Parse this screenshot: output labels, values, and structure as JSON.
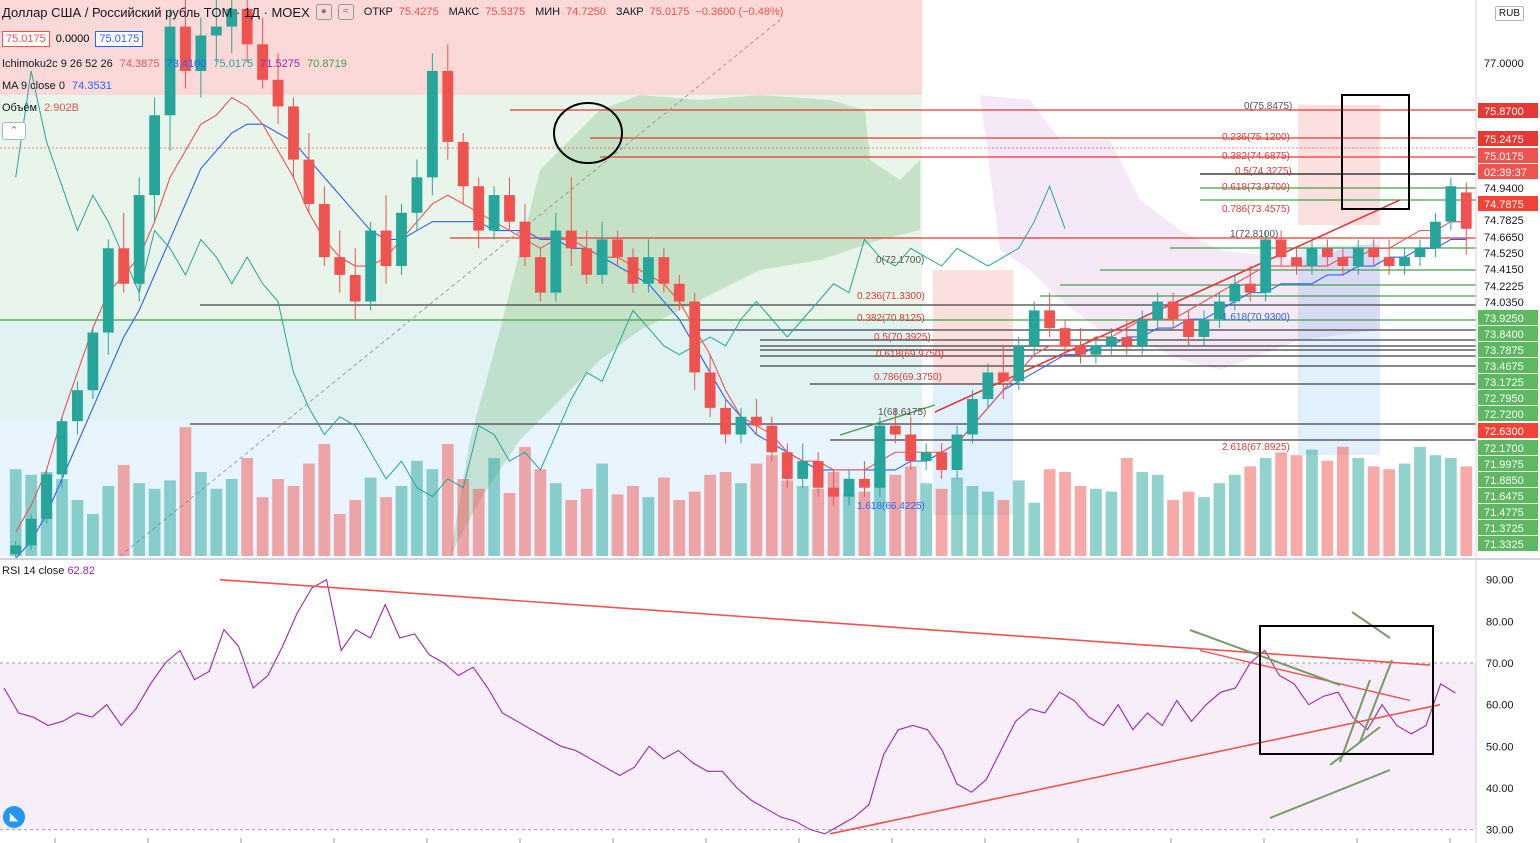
{
  "header": {
    "symbol": "Доллар США / Российский рубль TOM · 1Д · MOEX",
    "open_label": "ОТКР",
    "open": "75.4275",
    "high_label": "МАКС",
    "high": "75.5375",
    "low_label": "МИН",
    "low": "74.7250",
    "close_label": "ЗАКР",
    "close": "75.0175",
    "change": "−0.3600 (−0.48%)",
    "bid": "75.0175",
    "spread": "0.0000",
    "ask": "75.0175",
    "currency": "RUB"
  },
  "indicators": {
    "ichimoku_name": "Ichimoku2c 9 26 52 26",
    "ichimoku_values": [
      "74.3875",
      "73.4100",
      "75.0175",
      "71.5275",
      "70.8719"
    ],
    "ichimoku_colors": [
      "#ef5350",
      "#2962ff",
      "#26a69a",
      "#9c27b0",
      "#43a047"
    ],
    "ma_name": "MA 9 close 0",
    "ma_value": "74.3531",
    "volume_name": "Объём",
    "volume_value": "2.902B",
    "rsi_name": "RSI 14 close",
    "rsi_value": "62.82"
  },
  "chart_data": [
    {
      "type": "candlestick",
      "price_axis_labels": [
        "77.0000",
        "75.8700",
        "75.2475",
        "75.0175",
        "02:39:37",
        "74.9400",
        "74.7875",
        "74.7825",
        "74.6650",
        "74.5250",
        "74.4150",
        "74.2225",
        "74.0350",
        "73.9250",
        "73.8400",
        "73.7875",
        "73.4675",
        "73.1725",
        "72.7950",
        "72.7200",
        "72.6300",
        "72.1700",
        "71.9975",
        "71.8850",
        "71.6475",
        "71.4775",
        "71.3725",
        "71.3325"
      ],
      "highlighted_axis_labels": [
        "75.8700",
        "75.2475",
        "75.0175",
        "02:39:37",
        "74.7875",
        "72.6300"
      ],
      "fib_left": [
        "0(72.1700)",
        "0.236(71.3300)",
        "0.382(70.8125)",
        "0.5(70.3925)",
        "0.618(69.9750)",
        "0.786(69.3750)",
        "1(68.6175)",
        "1.618(66.4225)"
      ],
      "fib_right": [
        "0(75.8475)",
        "0.236(75.1200)",
        "0.382(74.6875)",
        "0.5(74.3275)",
        "0.618(73.9700)",
        "0.786(73.4575)",
        "1(72.8100)",
        "1.618(70.9300)",
        "2.618(67.8925)"
      ],
      "ylim": [
        71.33,
        77.6
      ],
      "candles": [
        {
          "o": 71.35,
          "h": 71.5,
          "l": 71.3,
          "c": 71.45
        },
        {
          "o": 71.45,
          "h": 71.8,
          "l": 71.4,
          "c": 71.75
        },
        {
          "o": 71.75,
          "h": 72.3,
          "l": 71.7,
          "c": 72.25
        },
        {
          "o": 72.25,
          "h": 72.9,
          "l": 72.1,
          "c": 72.85
        },
        {
          "o": 72.85,
          "h": 73.3,
          "l": 72.7,
          "c": 73.2
        },
        {
          "o": 73.2,
          "h": 73.9,
          "l": 73.1,
          "c": 73.85
        },
        {
          "o": 73.85,
          "h": 74.9,
          "l": 73.6,
          "c": 74.8
        },
        {
          "o": 74.8,
          "h": 75.2,
          "l": 74.3,
          "c": 74.4
        },
        {
          "o": 74.4,
          "h": 75.6,
          "l": 74.2,
          "c": 75.4
        },
        {
          "o": 75.4,
          "h": 76.5,
          "l": 75.1,
          "c": 76.3
        },
        {
          "o": 76.3,
          "h": 77.5,
          "l": 75.9,
          "c": 77.3
        },
        {
          "o": 77.3,
          "h": 77.6,
          "l": 76.6,
          "c": 76.8
        },
        {
          "o": 76.8,
          "h": 77.4,
          "l": 76.5,
          "c": 77.2
        },
        {
          "o": 77.2,
          "h": 77.6,
          "l": 76.9,
          "c": 77.3
        },
        {
          "o": 77.3,
          "h": 77.6,
          "l": 77.0,
          "c": 77.5
        },
        {
          "o": 77.5,
          "h": 77.6,
          "l": 76.9,
          "c": 77.1
        },
        {
          "o": 77.1,
          "h": 77.4,
          "l": 76.6,
          "c": 76.7
        },
        {
          "o": 76.7,
          "h": 77.0,
          "l": 76.2,
          "c": 76.4
        },
        {
          "o": 76.4,
          "h": 76.5,
          "l": 75.6,
          "c": 75.8
        },
        {
          "o": 75.8,
          "h": 76.1,
          "l": 75.2,
          "c": 75.3
        },
        {
          "o": 75.3,
          "h": 75.5,
          "l": 74.6,
          "c": 74.7
        },
        {
          "o": 74.7,
          "h": 75.0,
          "l": 74.3,
          "c": 74.5
        },
        {
          "o": 74.5,
          "h": 74.8,
          "l": 74.0,
          "c": 74.2
        },
        {
          "o": 74.2,
          "h": 75.1,
          "l": 74.1,
          "c": 75.0
        },
        {
          "o": 75.0,
          "h": 75.4,
          "l": 74.4,
          "c": 74.6
        },
        {
          "o": 74.6,
          "h": 75.3,
          "l": 74.5,
          "c": 75.2
        },
        {
          "o": 75.2,
          "h": 75.8,
          "l": 75.0,
          "c": 75.6
        },
        {
          "o": 75.6,
          "h": 77.0,
          "l": 75.4,
          "c": 76.8
        },
        {
          "o": 76.8,
          "h": 77.1,
          "l": 75.8,
          "c": 76.0
        },
        {
          "o": 76.0,
          "h": 76.1,
          "l": 75.3,
          "c": 75.5
        },
        {
          "o": 75.5,
          "h": 75.6,
          "l": 74.8,
          "c": 75.0
        },
        {
          "o": 75.0,
          "h": 75.5,
          "l": 74.9,
          "c": 75.4
        },
        {
          "o": 75.4,
          "h": 75.6,
          "l": 75.0,
          "c": 75.1
        },
        {
          "o": 75.1,
          "h": 75.3,
          "l": 74.6,
          "c": 74.7
        },
        {
          "o": 74.7,
          "h": 74.8,
          "l": 74.2,
          "c": 74.3
        },
        {
          "o": 74.3,
          "h": 75.2,
          "l": 74.2,
          "c": 75.0
        },
        {
          "o": 75.0,
          "h": 75.6,
          "l": 74.6,
          "c": 74.8
        },
        {
          "o": 74.8,
          "h": 75.0,
          "l": 74.4,
          "c": 74.5
        },
        {
          "o": 74.5,
          "h": 75.1,
          "l": 74.4,
          "c": 74.9
        },
        {
          "o": 74.9,
          "h": 75.0,
          "l": 74.6,
          "c": 74.7
        },
        {
          "o": 74.7,
          "h": 74.8,
          "l": 74.3,
          "c": 74.4
        },
        {
          "o": 74.4,
          "h": 74.9,
          "l": 74.3,
          "c": 74.7
        },
        {
          "o": 74.7,
          "h": 74.8,
          "l": 74.3,
          "c": 74.4
        },
        {
          "o": 74.4,
          "h": 74.5,
          "l": 74.1,
          "c": 74.2
        },
        {
          "o": 74.2,
          "h": 74.3,
          "l": 73.2,
          "c": 73.4
        },
        {
          "o": 73.4,
          "h": 73.6,
          "l": 72.9,
          "c": 73.0
        },
        {
          "o": 73.0,
          "h": 73.1,
          "l": 72.6,
          "c": 72.7
        },
        {
          "o": 72.7,
          "h": 73.0,
          "l": 72.6,
          "c": 72.9
        },
        {
          "o": 72.9,
          "h": 73.1,
          "l": 72.7,
          "c": 72.8
        },
        {
          "o": 72.8,
          "h": 72.9,
          "l": 72.4,
          "c": 72.5
        },
        {
          "o": 72.5,
          "h": 72.6,
          "l": 72.1,
          "c": 72.2
        },
        {
          "o": 72.2,
          "h": 72.6,
          "l": 72.1,
          "c": 72.4
        },
        {
          "o": 72.4,
          "h": 72.5,
          "l": 72.0,
          "c": 72.1
        },
        {
          "o": 72.1,
          "h": 72.3,
          "l": 71.9,
          "c": 72.0
        },
        {
          "o": 72.0,
          "h": 72.3,
          "l": 71.9,
          "c": 72.2
        },
        {
          "o": 72.2,
          "h": 72.4,
          "l": 72.0,
          "c": 72.1
        },
        {
          "o": 72.1,
          "h": 72.9,
          "l": 72.0,
          "c": 72.8
        },
        {
          "o": 72.8,
          "h": 73.0,
          "l": 72.6,
          "c": 72.7
        },
        {
          "o": 72.7,
          "h": 72.9,
          "l": 72.3,
          "c": 72.4
        },
        {
          "o": 72.4,
          "h": 72.6,
          "l": 72.3,
          "c": 72.5
        },
        {
          "o": 72.5,
          "h": 72.6,
          "l": 72.2,
          "c": 72.3
        },
        {
          "o": 72.3,
          "h": 72.8,
          "l": 72.2,
          "c": 72.7
        },
        {
          "o": 72.7,
          "h": 73.2,
          "l": 72.6,
          "c": 73.1
        },
        {
          "o": 73.1,
          "h": 73.5,
          "l": 73.0,
          "c": 73.4
        },
        {
          "o": 73.4,
          "h": 73.7,
          "l": 73.1,
          "c": 73.3
        },
        {
          "o": 73.3,
          "h": 73.8,
          "l": 73.2,
          "c": 73.7
        },
        {
          "o": 73.7,
          "h": 74.2,
          "l": 73.6,
          "c": 74.1
        },
        {
          "o": 74.1,
          "h": 74.3,
          "l": 73.8,
          "c": 73.9
        },
        {
          "o": 73.9,
          "h": 74.0,
          "l": 73.6,
          "c": 73.7
        },
        {
          "o": 73.7,
          "h": 73.9,
          "l": 73.5,
          "c": 73.6
        },
        {
          "o": 73.6,
          "h": 73.8,
          "l": 73.5,
          "c": 73.7
        },
        {
          "o": 73.7,
          "h": 73.9,
          "l": 73.6,
          "c": 73.8
        },
        {
          "o": 73.8,
          "h": 74.0,
          "l": 73.6,
          "c": 73.7
        },
        {
          "o": 73.7,
          "h": 74.1,
          "l": 73.6,
          "c": 74.0
        },
        {
          "o": 74.0,
          "h": 74.3,
          "l": 73.9,
          "c": 74.2
        },
        {
          "o": 74.2,
          "h": 74.3,
          "l": 73.9,
          "c": 74.0
        },
        {
          "o": 74.0,
          "h": 74.1,
          "l": 73.7,
          "c": 73.8
        },
        {
          "o": 73.8,
          "h": 74.1,
          "l": 73.7,
          "c": 74.0
        },
        {
          "o": 74.0,
          "h": 74.3,
          "l": 73.9,
          "c": 74.2
        },
        {
          "o": 74.2,
          "h": 74.5,
          "l": 74.1,
          "c": 74.4
        },
        {
          "o": 74.4,
          "h": 74.6,
          "l": 74.2,
          "c": 74.3
        },
        {
          "o": 74.3,
          "h": 75.0,
          "l": 74.2,
          "c": 74.9
        },
        {
          "o": 74.9,
          "h": 75.0,
          "l": 74.6,
          "c": 74.7
        },
        {
          "o": 74.7,
          "h": 74.8,
          "l": 74.5,
          "c": 74.6
        },
        {
          "o": 74.6,
          "h": 74.9,
          "l": 74.5,
          "c": 74.8
        },
        {
          "o": 74.8,
          "h": 74.9,
          "l": 74.6,
          "c": 74.7
        },
        {
          "o": 74.7,
          "h": 74.8,
          "l": 74.5,
          "c": 74.6
        },
        {
          "o": 74.6,
          "h": 74.9,
          "l": 74.5,
          "c": 74.8
        },
        {
          "o": 74.8,
          "h": 74.9,
          "l": 74.6,
          "c": 74.7
        },
        {
          "o": 74.7,
          "h": 74.9,
          "l": 74.5,
          "c": 74.6
        },
        {
          "o": 74.6,
          "h": 74.8,
          "l": 74.5,
          "c": 74.7
        },
        {
          "o": 74.7,
          "h": 74.9,
          "l": 74.6,
          "c": 74.8
        },
        {
          "o": 74.8,
          "h": 75.2,
          "l": 74.7,
          "c": 75.1
        },
        {
          "o": 75.1,
          "h": 75.6,
          "l": 75.0,
          "c": 75.5
        },
        {
          "o": 75.43,
          "h": 75.54,
          "l": 74.73,
          "c": 75.02
        }
      ],
      "ichimoku_lines": {
        "tenkan": [
          71.6,
          71.9,
          72.3,
          72.9,
          73.4,
          73.9,
          74.3,
          74.5,
          74.7,
          75.1,
          75.6,
          75.9,
          76.2,
          76.3,
          76.5,
          76.4,
          76.2,
          75.9,
          75.6,
          75.2,
          74.9,
          74.7,
          74.6,
          74.6,
          74.7,
          74.9,
          75.1,
          75.3,
          75.4,
          75.3,
          75.2,
          75.1,
          75.0,
          74.9,
          74.8,
          74.9,
          74.9,
          74.8,
          74.7,
          74.7,
          74.6,
          74.5,
          74.4,
          74.2,
          73.9,
          73.6,
          73.2,
          72.9,
          72.8,
          72.7,
          72.5,
          72.4,
          72.4,
          72.3,
          72.3,
          72.3,
          72.4,
          72.5,
          72.5,
          72.5,
          72.5,
          72.6,
          72.8,
          73.0,
          73.2,
          73.4,
          73.6,
          73.7,
          73.7,
          73.7,
          73.8,
          73.8,
          73.9,
          74.0,
          74.0,
          74.0,
          74.1,
          74.2,
          74.3,
          74.4,
          74.5,
          74.6,
          74.6,
          74.6,
          74.6,
          74.6,
          74.7,
          74.7,
          74.8,
          74.8,
          74.9,
          75.0,
          75.0,
          75.1,
          75.1
        ],
        "kijun": [
          71.3,
          71.5,
          71.8,
          72.2,
          72.6,
          73.0,
          73.4,
          73.8,
          74.1,
          74.5,
          74.9,
          75.3,
          75.7,
          75.9,
          76.1,
          76.2,
          76.2,
          76.1,
          76.0,
          75.8,
          75.6,
          75.4,
          75.2,
          75.0,
          74.9,
          74.9,
          75.0,
          75.1,
          75.1,
          75.1,
          75.1,
          75.0,
          75.0,
          75.0,
          74.9,
          74.9,
          74.8,
          74.8,
          74.7,
          74.6,
          74.5,
          74.4,
          74.2,
          74.0,
          73.7,
          73.4,
          73.1,
          72.9,
          72.7,
          72.6,
          72.5,
          72.4,
          72.3,
          72.3,
          72.3,
          72.3,
          72.3,
          72.3,
          72.4,
          72.4,
          72.5,
          72.6,
          72.8,
          73.0,
          73.2,
          73.3,
          73.4,
          73.5,
          73.6,
          73.6,
          73.7,
          73.7,
          73.8,
          73.8,
          73.9,
          73.9,
          74.0,
          74.0,
          74.1,
          74.2,
          74.3,
          74.3,
          74.4,
          74.4,
          74.4,
          74.5,
          74.5,
          74.6,
          74.6,
          74.7,
          74.7,
          74.8,
          74.8,
          74.9,
          74.9
        ]
      }
    },
    {
      "type": "bar",
      "name": "volume",
      "values": [
        62,
        58,
        60,
        55,
        40,
        30,
        50,
        65,
        52,
        48,
        54,
        92,
        60,
        48,
        55,
        70,
        42,
        55,
        50,
        66,
        80,
        30,
        40,
        56,
        42,
        50,
        68,
        62,
        80,
        55,
        48,
        70,
        45,
        78,
        62,
        52,
        40,
        48,
        66,
        44,
        50,
        42,
        56,
        40,
        46,
        58,
        60,
        52,
        66,
        72,
        54,
        50,
        48,
        60,
        44,
        46,
        70,
        58,
        64,
        52,
        48,
        56,
        50,
        46,
        40,
        54,
        38,
        62,
        60,
        50,
        48,
        46,
        70,
        60,
        58,
        40,
        46,
        42,
        52,
        58,
        64,
        70,
        74,
        72,
        76,
        68,
        78,
        70,
        64,
        62,
        66,
        78,
        72,
        70,
        64
      ]
    },
    {
      "type": "line",
      "name": "RSI 14 close",
      "ylim": [
        28,
        94
      ],
      "yticks": [
        "90.00",
        "80.00",
        "70.00",
        "60.00",
        "50.00",
        "40.00",
        "30.00"
      ],
      "values": [
        64,
        58,
        57,
        55,
        56,
        58,
        57,
        60,
        55,
        59,
        65,
        70,
        73,
        66,
        68,
        78,
        74,
        64,
        67,
        74,
        82,
        88,
        90,
        73,
        78,
        76,
        84,
        76,
        77,
        72,
        70,
        67,
        69,
        64,
        58,
        56,
        54,
        52,
        50,
        49,
        47,
        45,
        43,
        45,
        50,
        47,
        49,
        46,
        44,
        44,
        40,
        37,
        35,
        33,
        32,
        30,
        29,
        31,
        33,
        36,
        48,
        54,
        55,
        54,
        49,
        41,
        39,
        42,
        49,
        56,
        59,
        58,
        63,
        61,
        57,
        55,
        60,
        54,
        58,
        55,
        61,
        56,
        60,
        63,
        64,
        70,
        73,
        67,
        65,
        60,
        62,
        63,
        57,
        54,
        60,
        55,
        53,
        55,
        65,
        62.8
      ]
    }
  ]
}
